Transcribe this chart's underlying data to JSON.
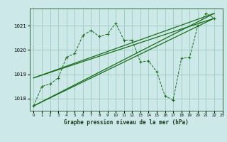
{
  "title": "Graphe pression niveau de la mer (hPa)",
  "bg_color": "#cce8e8",
  "grid_color": "#99ccbb",
  "line_color": "#1a6e1a",
  "xlim": [
    -0.5,
    23
  ],
  "ylim": [
    1017.5,
    1021.7
  ],
  "yticks": [
    1018,
    1019,
    1020,
    1021
  ],
  "xticks": [
    0,
    1,
    2,
    3,
    4,
    5,
    6,
    7,
    8,
    9,
    10,
    11,
    12,
    13,
    14,
    15,
    16,
    17,
    18,
    19,
    20,
    21,
    22,
    23
  ],
  "series_main": [
    [
      0,
      1017.7
    ],
    [
      1,
      1018.5
    ],
    [
      2,
      1018.6
    ],
    [
      3,
      1018.85
    ],
    [
      4,
      1019.7
    ],
    [
      5,
      1019.85
    ],
    [
      6,
      1020.6
    ],
    [
      7,
      1020.8
    ],
    [
      8,
      1020.55
    ],
    [
      9,
      1020.65
    ],
    [
      10,
      1021.1
    ],
    [
      11,
      1020.4
    ],
    [
      12,
      1020.4
    ],
    [
      13,
      1019.5
    ],
    [
      14,
      1019.55
    ],
    [
      15,
      1019.1
    ],
    [
      16,
      1018.1
    ],
    [
      17,
      1017.95
    ],
    [
      18,
      1019.65
    ],
    [
      19,
      1019.7
    ],
    [
      20,
      1021.0
    ],
    [
      21,
      1021.5
    ],
    [
      22,
      1021.3
    ]
  ],
  "series_trend1": [
    [
      0,
      1018.85
    ],
    [
      22,
      1021.3
    ]
  ],
  "series_trend2": [
    [
      0,
      1018.85
    ],
    [
      22,
      1021.5
    ]
  ],
  "series_trend3": [
    [
      0,
      1017.7
    ],
    [
      22,
      1021.3
    ]
  ],
  "series_trend4": [
    [
      0,
      1017.7
    ],
    [
      22,
      1021.5
    ]
  ]
}
